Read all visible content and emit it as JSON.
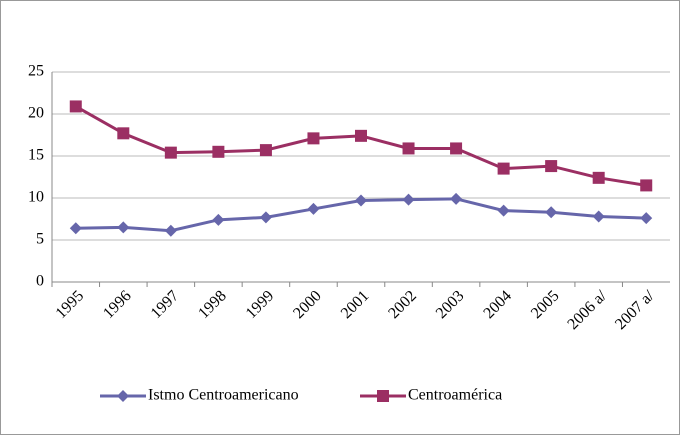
{
  "chart_data": {
    "type": "line",
    "categories": [
      "1995",
      "1996",
      "1997",
      "1998",
      "1999",
      "2000",
      "2001",
      "2002",
      "2003",
      "2004",
      "2005",
      "2006 a/",
      "2007 a/"
    ],
    "series": [
      {
        "name": "Istmo Centroamericano",
        "color": "#6666aa",
        "marker": "diamond",
        "values": [
          6.4,
          6.5,
          6.1,
          7.4,
          7.7,
          8.7,
          9.7,
          9.8,
          9.9,
          8.5,
          8.3,
          7.8,
          7.6
        ]
      },
      {
        "name": "Centroamérica",
        "color": "#9b2f63",
        "marker": "square",
        "values": [
          20.9,
          17.7,
          15.4,
          15.5,
          15.7,
          17.1,
          17.4,
          15.9,
          15.9,
          13.5,
          13.8,
          12.4,
          11.5
        ]
      }
    ],
    "ylim": [
      0,
      25
    ],
    "yticks": [
      0,
      5,
      10,
      15,
      20,
      25
    ],
    "grid": true,
    "legend": "bottom"
  }
}
